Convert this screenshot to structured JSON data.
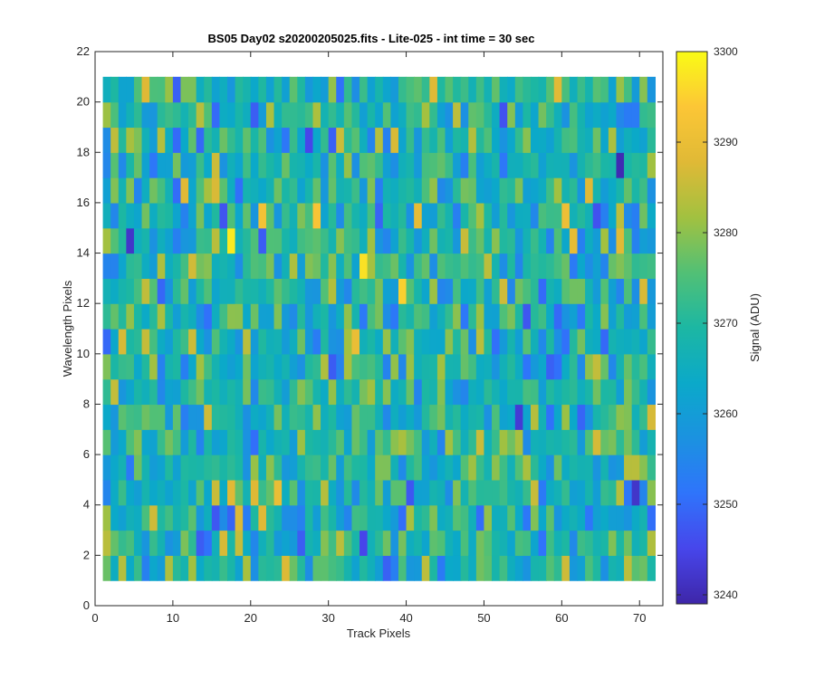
{
  "chart_data": {
    "type": "heatmap",
    "title": "BS05 Day02  s20200205025.fits - Lite-025 - int time = 30 sec",
    "xlabel": "Track Pixels",
    "ylabel": "Wavelength Pixels",
    "colorbar_label": "Signal (ADU)",
    "xlim": [
      0,
      73
    ],
    "ylim": [
      0,
      22
    ],
    "x_ticks": [
      "0",
      "10",
      "20",
      "30",
      "40",
      "50",
      "60",
      "70"
    ],
    "y_ticks": [
      "0",
      "2",
      "4",
      "6",
      "8",
      "10",
      "12",
      "14",
      "16",
      "18",
      "20",
      "22"
    ],
    "colorbar_ticks": [
      "3240",
      "3250",
      "3260",
      "3270",
      "3280",
      "3290",
      "3300"
    ],
    "clim": [
      3239,
      3300
    ],
    "colormap": "parula",
    "cell_columns": [
      1,
      72
    ],
    "cell_rows": [
      1,
      21
    ],
    "grid": false,
    "colormap_stops": [
      "#3e26a8",
      "#4746eb",
      "#2f74fb",
      "#1b92e0",
      "#0ba9c9",
      "#1cb7a3",
      "#52c075",
      "#a2c140",
      "#e0b936",
      "#fcc636",
      "#f9fb15"
    ],
    "highlights": [
      {
        "x": 17.5,
        "y": 14.5,
        "value": 3298
      },
      {
        "x": 34.5,
        "y": 13.5,
        "value": 3297
      },
      {
        "x": 28.5,
        "y": 15.5,
        "value": 3293
      },
      {
        "x": 39.5,
        "y": 12.5,
        "value": 3295
      },
      {
        "x": 4.5,
        "y": 14.5,
        "value": 3242
      },
      {
        "x": 67.5,
        "y": 17.5,
        "value": 3240
      },
      {
        "x": 54.5,
        "y": 7.5,
        "value": 3243
      },
      {
        "x": 69.5,
        "y": 4.5,
        "value": 3242
      },
      {
        "x": 16.5,
        "y": 15.5,
        "value": 3247
      },
      {
        "x": 11.5,
        "y": 16.5,
        "value": 3288
      },
      {
        "x": 41.5,
        "y": 15.5,
        "value": 3289
      },
      {
        "x": 23.5,
        "y": 4.5,
        "value": 3290
      },
      {
        "x": 33.5,
        "y": 10.5,
        "value": 3290
      },
      {
        "x": 70.5,
        "y": 12.5,
        "value": 3287
      }
    ]
  }
}
